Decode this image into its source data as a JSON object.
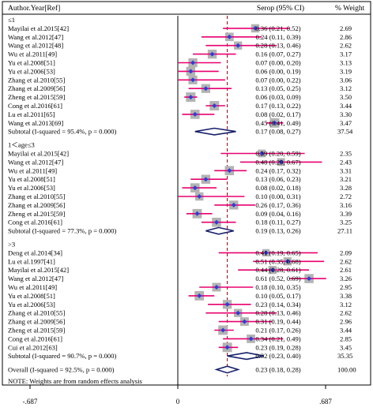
{
  "chart_data": {
    "type": "forest",
    "headers": {
      "study": "Author.Year[Ref]",
      "estimate": "Serop (95% CI)",
      "weight": "% Weight"
    },
    "x_ticks": [
      {
        "value": -0.687,
        "label": "-.687"
      },
      {
        "value": 0,
        "label": "0"
      },
      {
        "value": 0.687,
        "label": ".687"
      }
    ],
    "xlim": [
      -0.687,
      0.687
    ],
    "overall_line": 0.23,
    "colors": {
      "marker": "#2b3fd6",
      "ci_line": "#e8006e",
      "weight_box": "#b3b3b3",
      "diamond": "#17206b",
      "overall_line": "#8b0000"
    },
    "groups": [
      {
        "title": "≤1",
        "studies": [
          {
            "study": "Mayilai et al.2015[42]",
            "est": 0.36,
            "lo": 0.21,
            "hi": 0.52,
            "text": "0.36 (0.21, 0.52)",
            "weight": "2.69"
          },
          {
            "study": "Wang et al.2012[47]",
            "est": 0.24,
            "lo": 0.11,
            "hi": 0.39,
            "text": "0.24 (0.11, 0.39)",
            "weight": "2.86"
          },
          {
            "study": "Wang et al.2012[48]",
            "est": 0.28,
            "lo": 0.13,
            "hi": 0.46,
            "text": "0.28 (0.13, 0.46)",
            "weight": "2.62"
          },
          {
            "study": "Wu et al.2011[49]",
            "est": 0.16,
            "lo": 0.07,
            "hi": 0.27,
            "text": "0.16 (0.07, 0.27)",
            "weight": "3.17"
          },
          {
            "study": "Yu et al.2008[51]",
            "est": 0.07,
            "lo": 0.0,
            "hi": 0.2,
            "text": "0.07 (0.00, 0.20)",
            "weight": "3.13"
          },
          {
            "study": "Yu et al.2006[53]",
            "est": 0.06,
            "lo": 0.0,
            "hi": 0.19,
            "text": "0.06 (0.00, 0.19)",
            "weight": "3.19"
          },
          {
            "study": "Zhang et al.2010[55]",
            "est": 0.07,
            "lo": 0.0,
            "hi": 0.22,
            "text": "0.07 (0.00, 0.22)",
            "weight": "3.06"
          },
          {
            "study": "Zhang et al.2009[56]",
            "est": 0.13,
            "lo": 0.05,
            "hi": 0.25,
            "text": "0.13 (0.05, 0.25)",
            "weight": "3.12"
          },
          {
            "study": "Zheng et al.2015[59]",
            "est": 0.06,
            "lo": 0.03,
            "hi": 0.09,
            "text": "0.06 (0.03, 0.09)",
            "weight": "3.50"
          },
          {
            "study": "Cong et al.2016[61]",
            "est": 0.17,
            "lo": 0.13,
            "hi": 0.22,
            "text": "0.17 (0.13, 0.22)",
            "weight": "3.44"
          },
          {
            "study": "Lu et al.2011[65]",
            "est": 0.08,
            "lo": 0.02,
            "hi": 0.17,
            "text": "0.08 (0.02, 0.17)",
            "weight": "3.30"
          },
          {
            "study": "Wang et al.2013[69]",
            "est": 0.45,
            "lo": 0.41,
            "hi": 0.49,
            "text": "0.45 (0.41, 0.49)",
            "weight": "3.47"
          }
        ],
        "subtotal": {
          "label": "Subtotal  (I-squared = 95.4%, p = 0.000)",
          "est": 0.17,
          "lo": 0.08,
          "hi": 0.27,
          "text": "0.17 (0.08, 0.27)",
          "weight": "37.54"
        }
      },
      {
        "title": "1＜age≤3",
        "studies": [
          {
            "study": "Mayilai et al.2015[42]",
            "est": 0.39,
            "lo": 0.2,
            "hi": 0.59,
            "text": "0.39 (0.20, 0.59)",
            "weight": "2.35"
          },
          {
            "study": "Wang et al.2012[47]",
            "est": 0.48,
            "lo": 0.29,
            "hi": 0.67,
            "text": "0.48 (0.29, 0.67)",
            "weight": "2.43"
          },
          {
            "study": "Wu et al.2011[49]",
            "est": 0.24,
            "lo": 0.17,
            "hi": 0.32,
            "text": "0.24 (0.17, 0.32)",
            "weight": "3.31"
          },
          {
            "study": "Yu et al.2008[51]",
            "est": 0.13,
            "lo": 0.06,
            "hi": 0.23,
            "text": "0.13 (0.06, 0.23)",
            "weight": "3.21"
          },
          {
            "study": "Yu et al.2006[53]",
            "est": 0.08,
            "lo": 0.02,
            "hi": 0.18,
            "text": "0.08 (0.02, 0.18)",
            "weight": "3.28"
          },
          {
            "study": "Zhang et al.2010[55]",
            "est": 0.1,
            "lo": 0.0,
            "hi": 0.31,
            "text": "0.10 (0.00, 0.31)",
            "weight": "2.72"
          },
          {
            "study": "Zhang et al.2009[56]",
            "est": 0.26,
            "lo": 0.17,
            "hi": 0.36,
            "text": "0.26 (0.17, 0.36)",
            "weight": "3.16"
          },
          {
            "study": "Zheng et al.2015[59]",
            "est": 0.09,
            "lo": 0.04,
            "hi": 0.16,
            "text": "0.09 (0.04, 0.16)",
            "weight": "3.39"
          },
          {
            "study": "Cong et al.2016[61]",
            "est": 0.18,
            "lo": 0.11,
            "hi": 0.27,
            "text": "0.18 (0.11, 0.27)",
            "weight": "3.25"
          }
        ],
        "subtotal": {
          "label": "Subtotal  (I-squared = 77.3%, p = 0.000)",
          "est": 0.19,
          "lo": 0.13,
          "hi": 0.26,
          "text": "0.19 (0.13, 0.26)",
          "weight": "27.11"
        }
      },
      {
        "title": ">3",
        "studies": [
          {
            "study": "Deng et al.2014[34]",
            "est": 0.41,
            "lo": 0.19,
            "hi": 0.65,
            "text": "0.41 (0.19, 0.65)",
            "weight": "2.09"
          },
          {
            "study": "Lu et al.1997[41]",
            "est": 0.51,
            "lo": 0.35,
            "hi": 0.68,
            "text": "0.51 (0.35, 0.68)",
            "weight": "2.62"
          },
          {
            "study": "Mayilai et al.2015[42]",
            "est": 0.44,
            "lo": 0.28,
            "hi": 0.61,
            "text": "0.44 (0.28, 0.61)",
            "weight": "2.61"
          },
          {
            "study": "Wang et al.2012[47]",
            "est": 0.61,
            "lo": 0.52,
            "hi": 0.69,
            "text": "0.61 (0.52, 0.69)",
            "weight": "3.26"
          },
          {
            "study": "Wu et al.2011[49]",
            "est": 0.18,
            "lo": 0.1,
            "hi": 0.35,
            "text": "0.18 (0.10, 0.35)",
            "weight": "2.95"
          },
          {
            "study": "Yu et al.2008[51]",
            "est": 0.1,
            "lo": 0.05,
            "hi": 0.17,
            "text": "0.10 (0.05, 0.17)",
            "weight": "3.38"
          },
          {
            "study": "Yu et al.2006[53]",
            "est": 0.23,
            "lo": 0.14,
            "hi": 0.34,
            "text": "0.23 (0.14, 0.34)",
            "weight": "3.12"
          },
          {
            "study": "Zhang et al.2010[55]",
            "est": 0.28,
            "lo": 0.13,
            "hi": 0.46,
            "text": "0.28 (0.13, 0.46)",
            "weight": "2.62"
          },
          {
            "study": "Zhang et al.2009[56]",
            "est": 0.31,
            "lo": 0.19,
            "hi": 0.44,
            "text": "0.31 (0.19, 0.44)",
            "weight": "2.96"
          },
          {
            "study": "Zheng et al.2015[59]",
            "est": 0.21,
            "lo": 0.17,
            "hi": 0.26,
            "text": "0.21 (0.17, 0.26)",
            "weight": "3.44"
          },
          {
            "study": "Cong et al.2016[61]",
            "est": 0.34,
            "lo": 0.21,
            "hi": 0.49,
            "text": "0.34 (0.21, 0.49)",
            "weight": "2.85"
          },
          {
            "study": "Cui et al.2012[63]",
            "est": 0.23,
            "lo": 0.19,
            "hi": 0.28,
            "text": "0.23 (0.19, 0.28)",
            "weight": "3.45"
          }
        ],
        "subtotal": {
          "label": "Subtotal  (I-squared = 90.7%, p = 0.000)",
          "est": 0.32,
          "lo": 0.23,
          "hi": 0.4,
          "text": "0.32 (0.23, 0.40)",
          "weight": "35.35"
        }
      }
    ],
    "overall": {
      "label": "Overall  (I-squared = 92.5%, p = 0.000)",
      "est": 0.23,
      "lo": 0.18,
      "hi": 0.28,
      "text": "0.23 (0.18, 0.28)",
      "weight": "100.00"
    },
    "note": "NOTE: Weights are from random effects analysis"
  }
}
